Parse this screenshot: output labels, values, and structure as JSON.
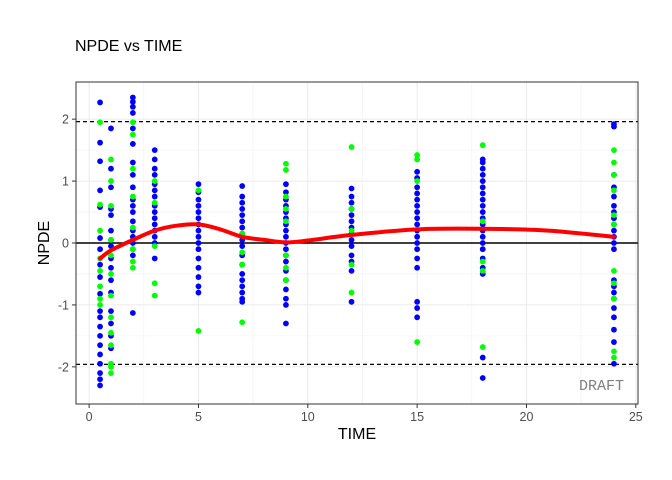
{
  "chart_data": {
    "type": "scatter",
    "title": "NPDE vs TIME",
    "xlabel": "TIME",
    "ylabel": "NPDE",
    "xlim": [
      -0.6,
      25.1
    ],
    "ylim": [
      -2.6,
      2.6
    ],
    "x_ticks": [
      0,
      5,
      10,
      15,
      20,
      25
    ],
    "y_ticks": [
      -2,
      -1,
      0,
      1,
      2
    ],
    "x_tick_labels": [
      "0",
      "5",
      "10",
      "15",
      "20",
      "25"
    ],
    "y_tick_labels": [
      "-2",
      "-1",
      "0",
      "1",
      "2"
    ],
    "grid": true,
    "legend": "none",
    "watermark": "DRAFT",
    "reference_lines": [
      {
        "y": 0,
        "style": "solid",
        "color": "#000000"
      },
      {
        "y": 1.96,
        "style": "dashed",
        "color": "#000000"
      },
      {
        "y": -1.96,
        "style": "dashed",
        "color": "#000000"
      }
    ],
    "series": [
      {
        "color": "#0000FF",
        "points": [
          [
            0.5,
            2.27
          ],
          [
            0.5,
            1.62
          ],
          [
            0.5,
            1.32
          ],
          [
            0.5,
            0.85
          ],
          [
            0.5,
            0.58
          ],
          [
            0.5,
            0.08
          ],
          [
            0.5,
            -0.1
          ],
          [
            0.5,
            -0.35
          ],
          [
            0.5,
            -0.55
          ],
          [
            0.5,
            -0.82
          ],
          [
            0.5,
            -1.1
          ],
          [
            0.5,
            -1.2
          ],
          [
            0.5,
            -1.35
          ],
          [
            0.5,
            -1.5
          ],
          [
            0.5,
            -1.65
          ],
          [
            0.5,
            -1.8
          ],
          [
            0.5,
            -1.95
          ],
          [
            0.5,
            -2.1
          ],
          [
            0.5,
            -2.2
          ],
          [
            0.5,
            -2.3
          ],
          [
            1,
            1.85
          ],
          [
            1,
            1.2
          ],
          [
            1,
            0.9
          ],
          [
            1,
            0.55
          ],
          [
            1,
            0.45
          ],
          [
            1,
            0.2
          ],
          [
            1,
            0.05
          ],
          [
            1,
            -0.05
          ],
          [
            1,
            -0.25
          ],
          [
            1,
            -0.4
          ],
          [
            1,
            -0.6
          ],
          [
            1,
            -0.8
          ],
          [
            1,
            -1.1
          ],
          [
            1,
            -1.3
          ],
          [
            1,
            -1.5
          ],
          [
            1,
            -1.7
          ],
          [
            2,
            2.35
          ],
          [
            2,
            2.28
          ],
          [
            2,
            2.2
          ],
          [
            2,
            2.1
          ],
          [
            2,
            1.85
          ],
          [
            2,
            1.6
          ],
          [
            2,
            1.3
          ],
          [
            2,
            1.1
          ],
          [
            2,
            0.9
          ],
          [
            2,
            0.7
          ],
          [
            2,
            0.6
          ],
          [
            2,
            0.5
          ],
          [
            2,
            0.35
          ],
          [
            2,
            0.2
          ],
          [
            2,
            0.1
          ],
          [
            2,
            0.0
          ],
          [
            2,
            -0.1
          ],
          [
            2,
            -0.2
          ],
          [
            2,
            -1.13
          ],
          [
            3,
            1.5
          ],
          [
            3,
            1.35
          ],
          [
            3,
            1.2
          ],
          [
            3,
            1.1
          ],
          [
            3,
            0.95
          ],
          [
            3,
            0.85
          ],
          [
            3,
            0.75
          ],
          [
            3,
            0.6
          ],
          [
            3,
            0.5
          ],
          [
            3,
            0.4
          ],
          [
            3,
            0.3
          ],
          [
            3,
            0.2
          ],
          [
            3,
            0.1
          ],
          [
            3,
            0.0
          ],
          [
            3,
            -0.25
          ],
          [
            5,
            0.95
          ],
          [
            5,
            0.82
          ],
          [
            5,
            0.7
          ],
          [
            5,
            0.6
          ],
          [
            5,
            0.5
          ],
          [
            5,
            0.4
          ],
          [
            5,
            0.3
          ],
          [
            5,
            0.2
          ],
          [
            5,
            0.1
          ],
          [
            5,
            0.0
          ],
          [
            5,
            -0.1
          ],
          [
            5,
            -0.25
          ],
          [
            5,
            -0.4
          ],
          [
            5,
            -0.55
          ],
          [
            5,
            -0.7
          ],
          [
            5,
            -0.8
          ],
          [
            7,
            0.92
          ],
          [
            7,
            0.75
          ],
          [
            7,
            0.65
          ],
          [
            7,
            0.55
          ],
          [
            7,
            0.45
          ],
          [
            7,
            0.35
          ],
          [
            7,
            0.25
          ],
          [
            7,
            0.15
          ],
          [
            7,
            0.05
          ],
          [
            7,
            -0.05
          ],
          [
            7,
            -0.2
          ],
          [
            7,
            -0.35
          ],
          [
            7,
            -0.5
          ],
          [
            7,
            -0.6
          ],
          [
            7,
            -0.7
          ],
          [
            7,
            -0.8
          ],
          [
            7,
            -0.9
          ],
          [
            7,
            -0.95
          ],
          [
            9,
            0.95
          ],
          [
            9,
            0.82
          ],
          [
            9,
            0.7
          ],
          [
            9,
            0.6
          ],
          [
            9,
            0.5
          ],
          [
            9,
            0.4
          ],
          [
            9,
            0.3
          ],
          [
            9,
            0.2
          ],
          [
            9,
            0.1
          ],
          [
            9,
            0.0
          ],
          [
            9,
            -0.1
          ],
          [
            9,
            -0.2
          ],
          [
            9,
            -0.3
          ],
          [
            9,
            -0.45
          ],
          [
            9,
            -0.6
          ],
          [
            9,
            -0.75
          ],
          [
            9,
            -0.9
          ],
          [
            9,
            -1.0
          ],
          [
            9,
            -1.3
          ],
          [
            12,
            0.88
          ],
          [
            12,
            0.75
          ],
          [
            12,
            0.65
          ],
          [
            12,
            0.55
          ],
          [
            12,
            0.45
          ],
          [
            12,
            0.35
          ],
          [
            12,
            0.25
          ],
          [
            12,
            0.15
          ],
          [
            12,
            0.05
          ],
          [
            12,
            -0.05
          ],
          [
            12,
            -0.2
          ],
          [
            12,
            -0.3
          ],
          [
            12,
            -0.45
          ],
          [
            12,
            -0.95
          ],
          [
            15,
            1.15
          ],
          [
            15,
            1.05
          ],
          [
            15,
            0.9
          ],
          [
            15,
            0.8
          ],
          [
            15,
            0.7
          ],
          [
            15,
            0.6
          ],
          [
            15,
            0.5
          ],
          [
            15,
            0.4
          ],
          [
            15,
            0.3
          ],
          [
            15,
            0.2
          ],
          [
            15,
            0.1
          ],
          [
            15,
            0.0
          ],
          [
            15,
            -0.1
          ],
          [
            15,
            -0.25
          ],
          [
            15,
            -0.4
          ],
          [
            15,
            -0.95
          ],
          [
            15,
            -1.05
          ],
          [
            15,
            -1.2
          ],
          [
            18,
            1.35
          ],
          [
            18,
            1.3
          ],
          [
            18,
            1.2
          ],
          [
            18,
            1.1
          ],
          [
            18,
            1.0
          ],
          [
            18,
            0.9
          ],
          [
            18,
            0.8
          ],
          [
            18,
            0.7
          ],
          [
            18,
            0.6
          ],
          [
            18,
            0.5
          ],
          [
            18,
            0.4
          ],
          [
            18,
            0.3
          ],
          [
            18,
            0.2
          ],
          [
            18,
            0.1
          ],
          [
            18,
            0.0
          ],
          [
            18,
            -0.1
          ],
          [
            18,
            -0.25
          ],
          [
            18,
            -0.4
          ],
          [
            18,
            -0.5
          ],
          [
            18,
            -1.85
          ],
          [
            18,
            -2.18
          ],
          [
            24,
            1.92
          ],
          [
            24,
            1.88
          ],
          [
            24,
            1.1
          ],
          [
            24,
            0.9
          ],
          [
            24,
            0.75
          ],
          [
            24,
            0.6
          ],
          [
            24,
            0.5
          ],
          [
            24,
            0.4
          ],
          [
            24,
            0.3
          ],
          [
            24,
            0.2
          ],
          [
            24,
            0.1
          ],
          [
            24,
            0.0
          ],
          [
            24,
            -0.1
          ],
          [
            24,
            -0.6
          ],
          [
            24,
            -0.7
          ],
          [
            24,
            -0.8
          ],
          [
            24,
            -0.9
          ],
          [
            24,
            -1.05
          ],
          [
            24,
            -1.2
          ],
          [
            24,
            -1.4
          ],
          [
            24,
            -1.6
          ],
          [
            24,
            -1.95
          ]
        ]
      },
      {
        "color": "#00FF00",
        "points": [
          [
            0.5,
            1.95
          ],
          [
            0.5,
            0.62
          ],
          [
            0.5,
            0.2
          ],
          [
            0.5,
            -0.25
          ],
          [
            0.5,
            -0.45
          ],
          [
            0.5,
            -0.7
          ],
          [
            0.5,
            -0.9
          ],
          [
            0.5,
            -1.0
          ],
          [
            1,
            1.35
          ],
          [
            1,
            1.0
          ],
          [
            1,
            0.6
          ],
          [
            1,
            0.05
          ],
          [
            1,
            -0.2
          ],
          [
            1,
            -0.5
          ],
          [
            1,
            -0.85
          ],
          [
            1,
            -1.2
          ],
          [
            1,
            -1.45
          ],
          [
            1,
            -1.65
          ],
          [
            1,
            -1.95
          ],
          [
            1,
            -2.0
          ],
          [
            1,
            -2.1
          ],
          [
            2,
            1.95
          ],
          [
            2,
            1.75
          ],
          [
            2,
            1.2
          ],
          [
            2,
            0.75
          ],
          [
            2,
            0.25
          ],
          [
            2,
            -0.1
          ],
          [
            2,
            -0.3
          ],
          [
            2,
            -0.4
          ],
          [
            3,
            1.0
          ],
          [
            3,
            0.65
          ],
          [
            3,
            -0.05
          ],
          [
            3,
            -0.65
          ],
          [
            3,
            -0.85
          ],
          [
            5,
            0.85
          ],
          [
            5,
            -1.42
          ],
          [
            7,
            0.15
          ],
          [
            7,
            -0.15
          ],
          [
            7,
            -0.35
          ],
          [
            7,
            -1.28
          ],
          [
            9,
            1.28
          ],
          [
            9,
            1.18
          ],
          [
            9,
            0.75
          ],
          [
            9,
            0.55
          ],
          [
            9,
            0.35
          ],
          [
            9,
            -0.2
          ],
          [
            9,
            -0.4
          ],
          [
            9,
            -0.6
          ],
          [
            12,
            1.55
          ],
          [
            12,
            0.55
          ],
          [
            12,
            0.2
          ],
          [
            12,
            -0.35
          ],
          [
            12,
            -0.8
          ],
          [
            15,
            1.42
          ],
          [
            15,
            1.35
          ],
          [
            15,
            1.0
          ],
          [
            15,
            -1.6
          ],
          [
            18,
            1.58
          ],
          [
            18,
            0.35
          ],
          [
            18,
            -0.3
          ],
          [
            18,
            -0.45
          ],
          [
            18,
            -1.68
          ],
          [
            24,
            1.5
          ],
          [
            24,
            1.3
          ],
          [
            24,
            1.1
          ],
          [
            24,
            0.85
          ],
          [
            24,
            0.45
          ],
          [
            24,
            0.3
          ],
          [
            24,
            -0.45
          ],
          [
            24,
            -0.65
          ],
          [
            24,
            -0.9
          ],
          [
            24,
            -1.75
          ],
          [
            24,
            -1.85
          ]
        ]
      }
    ],
    "smoother": {
      "color": "#FF0000",
      "x": [
        0.5,
        1,
        2,
        3,
        4,
        5,
        6,
        7,
        8,
        9,
        10,
        12,
        15,
        18,
        21,
        24
      ],
      "y": [
        -0.25,
        -0.12,
        0.05,
        0.2,
        0.28,
        0.3,
        0.22,
        0.1,
        0.05,
        0.01,
        0.04,
        0.13,
        0.22,
        0.23,
        0.2,
        0.1
      ]
    }
  }
}
